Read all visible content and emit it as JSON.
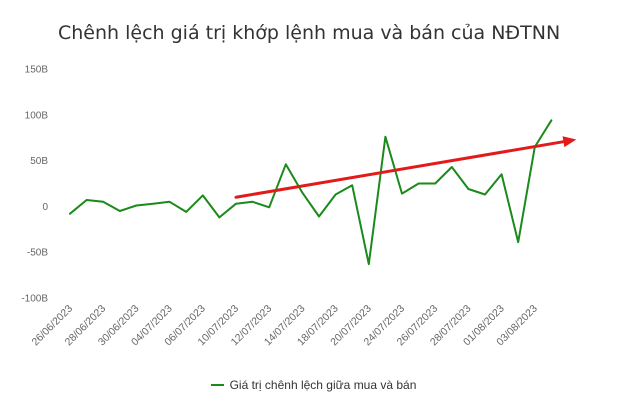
{
  "title": "Chênh lệch giá trị khớp lệnh mua và bán của NĐTNN",
  "chart_data": {
    "type": "line",
    "title": "Chênh lệch giá trị khớp lệnh mua và bán của NĐTNN",
    "xlabel": "",
    "ylabel": "",
    "ylim": [
      -100,
      150
    ],
    "yticks": [
      150,
      100,
      50,
      0,
      -50,
      -100
    ],
    "ytick_labels": [
      "150B",
      "100B",
      "50B",
      "0",
      "-50B",
      "-100B"
    ],
    "x": [
      "26/06/2023",
      "27/06/2023",
      "28/06/2023",
      "29/06/2023",
      "30/06/2023",
      "03/07/2023",
      "04/07/2023",
      "05/07/2023",
      "06/07/2023",
      "07/07/2023",
      "10/07/2023",
      "11/07/2023",
      "12/07/2023",
      "13/07/2023",
      "14/07/2023",
      "17/07/2023",
      "18/07/2023",
      "19/07/2023",
      "20/07/2023",
      "21/07/2023",
      "24/07/2023",
      "25/07/2023",
      "26/07/2023",
      "27/07/2023",
      "28/07/2023",
      "31/07/2023",
      "01/08/2023",
      "02/08/2023",
      "03/08/2023",
      "04/08/2023"
    ],
    "xtick_labels": [
      "26/06/2023",
      "28/06/2023",
      "30/06/2023",
      "04/07/2023",
      "06/07/2023",
      "10/07/2023",
      "12/07/2023",
      "14/07/2023",
      "18/07/2023",
      "20/07/2023",
      "24/07/2023",
      "26/07/2023",
      "28/07/2023",
      "01/08/2023",
      "03/08/2023"
    ],
    "series": [
      {
        "name": "Giá trị chênh lệch giữa mua và bán",
        "color": "#1a8a1a",
        "values": [
          -8,
          7,
          5,
          -5,
          1,
          3,
          5,
          -6,
          12,
          -12,
          3,
          5,
          -1,
          46,
          15,
          -11,
          13,
          23,
          -63,
          76,
          14,
          25,
          25,
          43,
          19,
          13,
          35,
          -39,
          65,
          94
        ]
      }
    ],
    "annotation": {
      "type": "arrow",
      "color": "#e31a1a",
      "from": {
        "x_index": 10,
        "y": 10
      },
      "to": {
        "x_index": 30.5,
        "y": 73
      }
    },
    "grid": false,
    "legend": "bottom"
  }
}
